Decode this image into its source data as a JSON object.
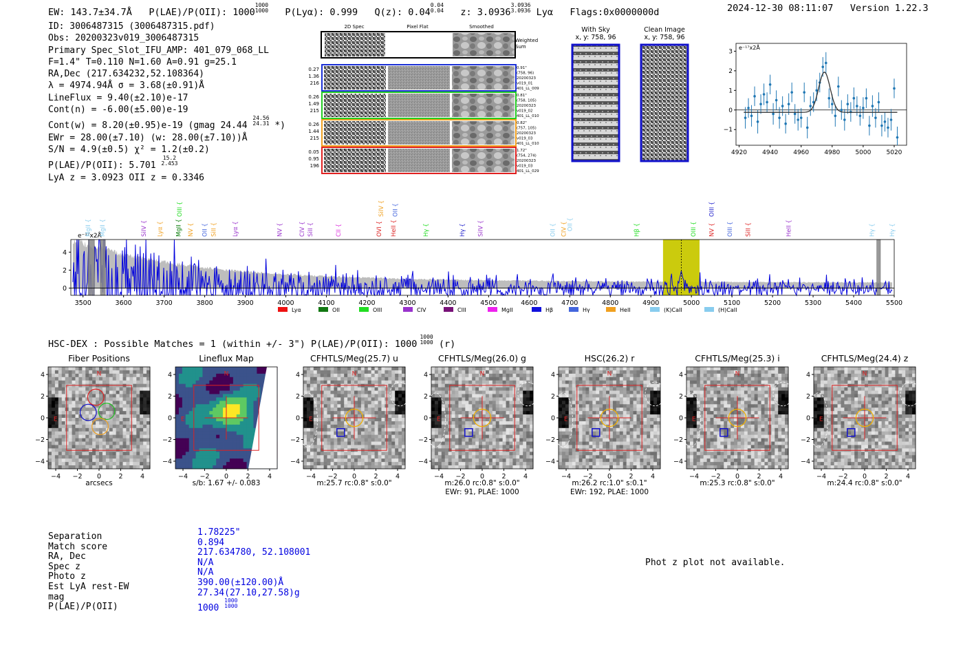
{
  "header": {
    "ew": "EW: 143.7±34.7Å",
    "plae_label": "P(LAE)/P(OII): 1000",
    "plae_sup": "1000",
    "plae_sub": "1000",
    "plya": "P(Lyα): 0.999",
    "qz_label": "Q(z): 0.04",
    "qz_sup": "0.04",
    "qz_sub": "0.04",
    "z_label": "z: 3.0936",
    "z_sup": "3.0936",
    "z_sub": "3.0936",
    "line": "Lyα",
    "flags": "Flags:0x0000000d",
    "datetime": "2024-12-30 08:11:07",
    "version": "Version 1.22.3"
  },
  "info_lines": {
    "l1": "ID: 3006487315 (3006487315.pdf)",
    "l2": "Obs: 20200323v019_3006487315",
    "l3": "Primary Spec_Slot_IFU_AMP: 401_079_068_LL",
    "l4": "F=1.4\"  T=0.110  N=1.60  A=0.91  g=25.1",
    "l5": "RA,Dec (217.634232,52.108364)",
    "l6": "λ = 4974.94Å  σ = 3.68(±0.91)Å",
    "l7": "LineFlux = 9.40(±2.10)e-17",
    "l8": "Cont(n) = -6.00(±5.00)e-19",
    "l9a": "Cont(w) = 8.20(±0.95)e-19 (gmag 24.44",
    "l9sup": "24.56",
    "l9sub": "24.31",
    "l9b": " *)",
    "l10": "EWr = 28.00(±7.10) (w: 28.00(±7.10))Å",
    "l11": "S/N = 4.9(±0.5)  χ² = 1.2(±0.2)",
    "l12a": "P(LAE)/P(OII): 5.701",
    "l12sup": "15.2",
    "l12sub": "2.453",
    "l13": "LyA z = 3.0923  OII z = 0.3346"
  },
  "fiber_panel": {
    "col_titles": [
      "2D Spec",
      "Pixel Flat",
      "Smoothed"
    ],
    "weighted_sum": [
      "Weighted",
      "Sum"
    ],
    "rows": [
      {
        "left": [
          "0.27",
          "1.36",
          "216"
        ],
        "right": [
          "0.91\"",
          "(758, 96)",
          "20200323",
          "v019_01",
          "401_LL_009"
        ],
        "color": "#1a2fd6"
      },
      {
        "left": [
          "0.26",
          "1.49",
          "215"
        ],
        "right": [
          "0.81\"",
          "(758, 105)",
          "20200323",
          "v019_02",
          "401_LL_010"
        ],
        "color": "#22cc22"
      },
      {
        "left": [
          "0.26",
          "1.44",
          "215"
        ],
        "right": [
          "0.82\"",
          "(757, 105)",
          "20200323",
          "v019_03",
          "401_LL_010"
        ],
        "color": "#f0a020"
      },
      {
        "left": [
          "0.05",
          "0.95",
          "196"
        ],
        "right": [
          "1.72\"",
          "(754, 274)",
          "20200323",
          "v019_03",
          "401_LL_029"
        ],
        "color": "#e02020"
      }
    ]
  },
  "sky_panels": {
    "with_sky": {
      "title": "With Sky",
      "coords": "x, y: 758, 96"
    },
    "clean": {
      "title": "Clean Image",
      "coords": "x, y: 758, 96"
    }
  },
  "zoom_chart_data": {
    "type": "scatter",
    "ylabel_unit": "e⁻¹⁷x2Å",
    "xlim": [
      4918,
      5028
    ],
    "ylim": [
      -1.8,
      3.4
    ],
    "xticks": [
      4920,
      4940,
      4960,
      4980,
      5000,
      5020
    ],
    "yticks": [
      3,
      2,
      1,
      0,
      -1
    ],
    "x": [
      4924,
      4926,
      4928,
      4930,
      4932,
      4934,
      4936,
      4938,
      4940,
      4942,
      4944,
      4946,
      4948,
      4950,
      4952,
      4954,
      4956,
      4958,
      4960,
      4962,
      4964,
      4966,
      4968,
      4970,
      4972,
      4974,
      4976,
      4978,
      4980,
      4982,
      4984,
      4986,
      4988,
      4990,
      4992,
      4994,
      4996,
      4998,
      5000,
      5002,
      5004,
      5006,
      5008,
      5010,
      5012,
      5014,
      5016,
      5018,
      5020,
      5022
    ],
    "y": [
      -0.4,
      0.1,
      -0.3,
      0.7,
      -0.6,
      0.3,
      0.8,
      0.4,
      1.3,
      -0.2,
      0.5,
      -0.4,
      0.2,
      -0.7,
      0.3,
      0.9,
      -0.2,
      -0.5,
      -0.4,
      0.9,
      -0.9,
      0.2,
      0.4,
      1.0,
      1.4,
      2.2,
      2.4,
      0.6,
      0.3,
      -0.3,
      1.2,
      0.0,
      -0.5,
      0.3,
      -0.1,
      0.6,
      0.2,
      -0.3,
      0.1,
      0.6,
      -0.8,
      0.2,
      -0.4,
      0.4,
      -0.8,
      -0.6,
      -0.9,
      -0.5,
      1.1,
      -1.4
    ],
    "err": [
      0.55,
      0.5,
      0.55,
      0.5,
      0.6,
      0.5,
      0.55,
      0.5,
      0.5,
      0.55,
      0.5,
      0.55,
      0.5,
      0.5,
      0.55,
      0.5,
      0.5,
      0.55,
      0.5,
      0.5,
      0.55,
      0.5,
      0.5,
      0.55,
      0.5,
      0.5,
      0.55,
      0.5,
      0.5,
      0.55,
      0.5,
      0.5,
      0.55,
      0.5,
      0.5,
      0.55,
      0.5,
      0.5,
      0.55,
      0.5,
      0.5,
      0.55,
      0.5,
      0.5,
      0.55,
      0.5,
      0.5,
      0.55,
      0.5,
      0.55
    ],
    "fit": {
      "mu": 4975,
      "sigma": 3.7,
      "amp": 2.05,
      "base": -0.12
    }
  },
  "chart_data": {
    "type": "line",
    "title": "",
    "ylabel_unit": "e⁻¹⁷x2Å",
    "xlabel": "",
    "xlim": [
      3470,
      5500
    ],
    "ylim": [
      -0.8,
      5.4
    ],
    "xticks": [
      3500,
      3600,
      3700,
      3800,
      3900,
      4000,
      4100,
      4200,
      4300,
      4400,
      4500,
      4600,
      4700,
      4800,
      4900,
      5000,
      5100,
      5200,
      5300,
      5400,
      5500
    ],
    "yticks": [
      4,
      2,
      0
    ],
    "highlight_band": [
      4930,
      5020
    ],
    "line_marker": 4975,
    "hatched_bands": [
      [
        3513,
        3528
      ],
      [
        3543,
        3555
      ],
      [
        5457,
        5466
      ]
    ],
    "series": [
      {
        "name": "flux",
        "color": "#0000dd",
        "points": "generated noise spectrum, amplitude decreasing from ~5 at 3500Å to ~0.6 near 5400Å, emission spike ~1.9 at 4975Å"
      },
      {
        "name": "error envelope",
        "color": "#bbbbbb"
      }
    ],
    "line_labels": [
      {
        "name": "MgII",
        "x": 3512,
        "color": "#88ccee",
        "tier": 0
      },
      {
        "name": "MgII",
        "x": 3548,
        "color": "#88ccee",
        "tier": 0
      },
      {
        "name": "SiIV",
        "x": 3650,
        "color": "#9933cc",
        "tier": 0
      },
      {
        "name": "Lyα",
        "x": 3690,
        "color": "#f0a020",
        "tier": 0
      },
      {
        "name": "MgII",
        "x": 3735,
        "color": "#007700",
        "tier": 0
      },
      {
        "name": "OIII",
        "x": 3738,
        "color": "#22dd22",
        "tier": 2
      },
      {
        "name": "NV",
        "x": 3765,
        "color": "#f0a020",
        "tier": 0
      },
      {
        "name": "OII",
        "x": 3800,
        "color": "#4466dd",
        "tier": 0
      },
      {
        "name": "SiII",
        "x": 3822,
        "color": "#f0a020",
        "tier": 0
      },
      {
        "name": "Lyα",
        "x": 3875,
        "color": "#9933cc",
        "tier": 0
      },
      {
        "name": "NV",
        "x": 3985,
        "color": "#9933cc",
        "tier": 0
      },
      {
        "name": "CIV",
        "x": 4040,
        "color": "#9933cc",
        "tier": 0
      },
      {
        "name": "SiII",
        "x": 4060,
        "color": "#9933cc",
        "tier": 0
      },
      {
        "name": "CII",
        "x": 4130,
        "color": "#dd33dd",
        "tier": 0
      },
      {
        "name": "OVI",
        "x": 4230,
        "color": "#dd2222",
        "tier": 0
      },
      {
        "name": "SiIV",
        "x": 4235,
        "color": "#f0a020",
        "tier": 2
      },
      {
        "name": "HeII",
        "x": 4265,
        "color": "#dd2222",
        "tier": 0
      },
      {
        "name": "OII",
        "x": 4270,
        "color": "#4466dd",
        "tier": 2
      },
      {
        "name": "Hγ",
        "x": 4345,
        "color": "#22dd22",
        "tier": 0
      },
      {
        "name": "Hγ",
        "x": 4435,
        "color": "#2222cc",
        "tier": 0
      },
      {
        "name": "SiIV",
        "x": 4480,
        "color": "#9933cc",
        "tier": 0
      },
      {
        "name": "OII",
        "x": 4658,
        "color": "#88ccee",
        "tier": 0
      },
      {
        "name": "CIV",
        "x": 4685,
        "color": "#f0a020",
        "tier": 0
      },
      {
        "name": "OII",
        "x": 4700,
        "color": "#88ccee",
        "tier": 1
      },
      {
        "name": "Hβ",
        "x": 4865,
        "color": "#22dd22",
        "tier": 0
      },
      {
        "name": "OIII",
        "x": 5005,
        "color": "#22dd22",
        "tier": 0
      },
      {
        "name": "NV",
        "x": 5050,
        "color": "#dd2222",
        "tier": 0
      },
      {
        "name": "OIII",
        "x": 5050,
        "color": "#2222cc",
        "tier": 2
      },
      {
        "name": "OIII",
        "x": 5095,
        "color": "#4466dd",
        "tier": 0
      },
      {
        "name": "SiII",
        "x": 5140,
        "color": "#dd2222",
        "tier": 0
      },
      {
        "name": "HeII",
        "x": 5240,
        "color": "#9933cc",
        "tier": 0
      },
      {
        "name": "Hγ",
        "x": 5445,
        "color": "#88ccee",
        "tier": 0
      },
      {
        "name": "Hγ",
        "x": 5495,
        "color": "#88ccee",
        "tier": 0
      }
    ],
    "legend": [
      {
        "name": "Lyα",
        "color": "#ee1111"
      },
      {
        "name": "OII",
        "color": "#117711"
      },
      {
        "name": "OIII",
        "color": "#22dd22"
      },
      {
        "name": "CIV",
        "color": "#9933cc"
      },
      {
        "name": "CIII",
        "color": "#771177"
      },
      {
        "name": "MgII",
        "color": "#ee22ee"
      },
      {
        "name": "Hβ",
        "color": "#1111dd"
      },
      {
        "name": "Hγ",
        "color": "#4466dd"
      },
      {
        "name": "HeII",
        "color": "#f0a020"
      },
      {
        "name": "(K)CaII",
        "color": "#88ccee"
      },
      {
        "name": "(H)CaII",
        "color": "#88ccee"
      }
    ]
  },
  "matches": {
    "line_a": "HSC-DEX : Possible Matches = 1 (within +/- 3\")  P(LAE)/P(OII): 1000",
    "sup": "1000",
    "sub": "1000",
    "line_b": " (r)"
  },
  "cutouts": {
    "axis_ticks_y": [
      "4",
      "2",
      "0",
      "−2",
      "−4"
    ],
    "axis_ticks_x": [
      "−4",
      "−2",
      "0",
      "2",
      "4"
    ],
    "compass_n": "N",
    "compass_e": "E",
    "panels": [
      {
        "title": "Fiber Positions",
        "caption1": "arcsecs",
        "caption2": "",
        "kind": "fiber"
      },
      {
        "title": "Lineflux Map",
        "caption1": "s/b: 1.67 +/- 0.083",
        "caption2": "",
        "kind": "flux"
      },
      {
        "title": "CFHTLS/Meg(25.7) u",
        "caption1": "m:25.7 rc:0.8\"  s:0.0\"",
        "caption2": "",
        "kind": "img"
      },
      {
        "title": "CFHTLS/Meg(26.0) g",
        "caption1": "m:26.0 rc:0.8\"  s:0.0\"",
        "caption2": "EWr: 91, PLAE: 1000",
        "kind": "img"
      },
      {
        "title": "HSC(26.2) r",
        "caption1": "m:26.2 rc:1.0\"  s:0.1\"",
        "caption2": "EWr: 192, PLAE: 1000",
        "kind": "img"
      },
      {
        "title": "CFHTLS/Meg(25.3) i",
        "caption1": "m:25.3 rc:0.8\"  s:0.0\"",
        "caption2": "",
        "kind": "img"
      },
      {
        "title": "CFHTLS/Meg(24.4) z",
        "caption1": "m:24.4 rc:0.8\"  s:0.0\"",
        "caption2": "",
        "kind": "img"
      }
    ]
  },
  "catalog": {
    "labels": [
      "Separation",
      "Match score",
      "RA, Dec",
      "Spec z",
      "Photo z",
      "Est LyA rest-EW",
      "mag",
      "P(LAE)/P(OII)"
    ],
    "values": [
      "1.78225\"",
      "0.894",
      "217.634780, 52.108001",
      "N/A",
      "N/A",
      "390.00(±120.00)Å",
      "27.34(27.10,27.58)g",
      "1000"
    ],
    "plae_sup": "1000",
    "plae_sub": "1000"
  },
  "photz_message": "Phot z plot not available.",
  "colors": {
    "accent_blue": "#0000dd",
    "band": "#c8c800",
    "cut_red": "#dd2222",
    "cut_orange": "#f0b000",
    "cut_blue": "#1111cc"
  }
}
